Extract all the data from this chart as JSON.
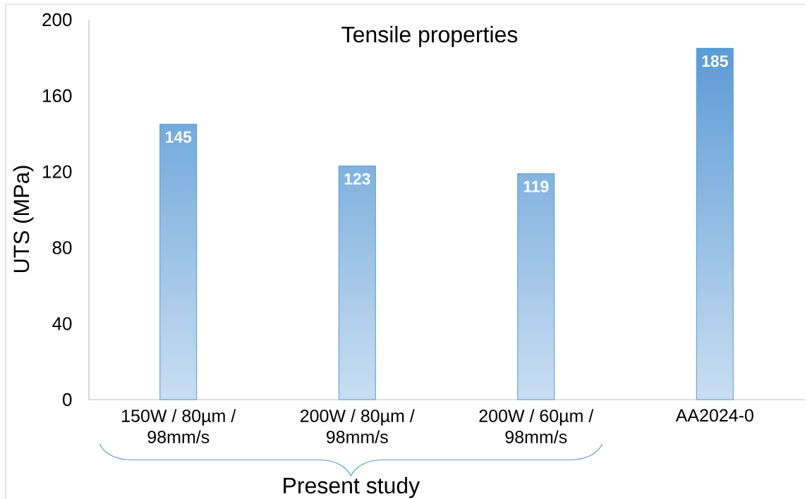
{
  "chart_data": {
    "type": "bar",
    "title": "Tensile properties",
    "ylabel": "UTS (MPa)",
    "categories": [
      "150W / 80µm / 98mm/s",
      "200W / 80µm / 98mm/s",
      "200W / 60µm / 98mm/s",
      "AA2024-0"
    ],
    "values": [
      145,
      123,
      119,
      185
    ],
    "color": "#5b9bd5",
    "ylim": [
      0,
      200
    ],
    "yticks": [
      0,
      40,
      80,
      120,
      160,
      200
    ],
    "data_labels": true,
    "annotations": [
      "Present study"
    ]
  }
}
